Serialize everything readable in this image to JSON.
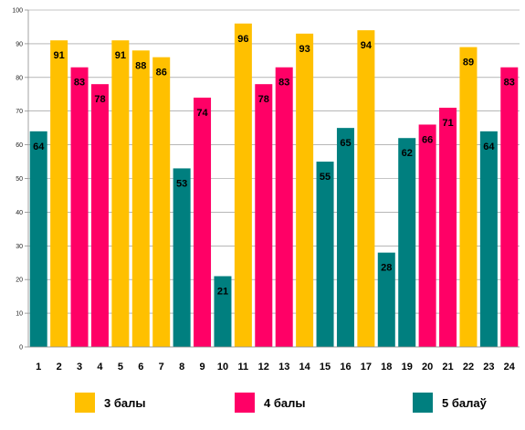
{
  "chart_data": {
    "type": "bar",
    "categories": [
      "1",
      "2",
      "3",
      "4",
      "5",
      "6",
      "7",
      "8",
      "9",
      "10",
      "11",
      "12",
      "13",
      "14",
      "15",
      "16",
      "17",
      "18",
      "19",
      "20",
      "21",
      "22",
      "23",
      "24"
    ],
    "values": [
      64,
      91,
      83,
      78,
      91,
      88,
      86,
      53,
      74,
      21,
      96,
      78,
      83,
      93,
      55,
      65,
      94,
      28,
      62,
      66,
      71,
      89,
      64,
      83
    ],
    "groups": [
      "5",
      "3",
      "4",
      "4",
      "3",
      "3",
      "3",
      "5",
      "4",
      "5",
      "3",
      "4",
      "4",
      "3",
      "5",
      "5",
      "3",
      "5",
      "5",
      "4",
      "4",
      "3",
      "5",
      "4"
    ],
    "ylim": [
      0,
      100
    ],
    "yticks": [
      0,
      10,
      20,
      30,
      40,
      50,
      60,
      70,
      80,
      90,
      100
    ],
    "grid": true,
    "legend": [
      {
        "key": "3",
        "label": "3 балы",
        "color": "#FFC000"
      },
      {
        "key": "4",
        "label": "4 балы",
        "color": "#FF0066"
      },
      {
        "key": "5",
        "label": "5 балаў",
        "color": "#007F7F"
      }
    ],
    "legend_placement": "bottom"
  }
}
